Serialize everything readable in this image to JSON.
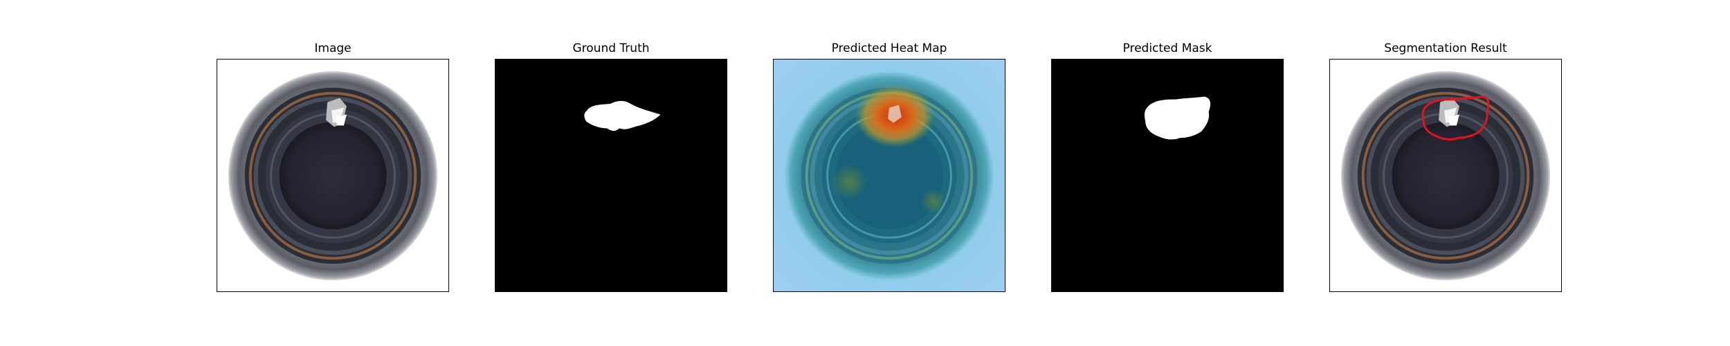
{
  "figure": {
    "panels": [
      {
        "title": "Image"
      },
      {
        "title": "Ground Truth"
      },
      {
        "title": "Predicted Heat Map"
      },
      {
        "title": "Predicted Mask"
      },
      {
        "title": "Segmentation Result"
      }
    ]
  },
  "colors": {
    "background": "#ffffff",
    "mask_background": "#000000",
    "mask_foreground": "#ffffff",
    "segmentation_outline": "#e0141e"
  }
}
